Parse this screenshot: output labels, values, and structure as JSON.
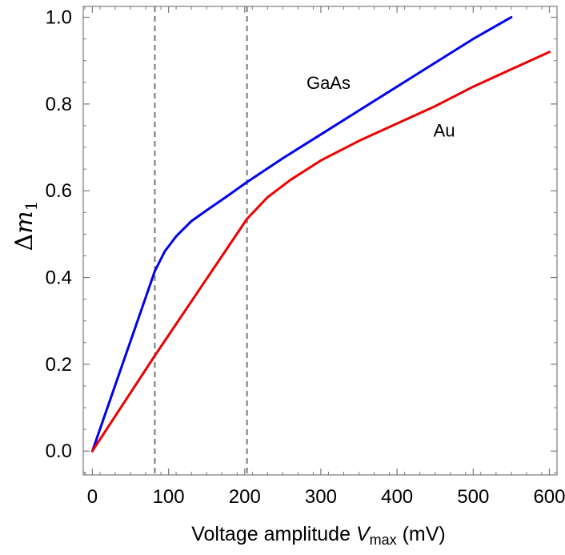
{
  "chart_data": {
    "type": "line",
    "xlabel": {
      "prefix": "Voltage  amplitude  ",
      "var": "V",
      "sub": "max",
      "unit": "  (mV)"
    },
    "ylabel": {
      "delta": "Δ",
      "var": "m",
      "sub": "1"
    },
    "xlim": [
      -12,
      610
    ],
    "ylim": [
      -0.055,
      1.025
    ],
    "xticks": [
      0,
      100,
      200,
      300,
      400,
      500,
      600
    ],
    "xtick_labels": [
      "0",
      "100",
      "200",
      "300",
      "400",
      "500",
      "600"
    ],
    "yticks": [
      0.0,
      0.2,
      0.4,
      0.6,
      0.8,
      1.0
    ],
    "ytick_labels": [
      "0.0",
      "0.2",
      "0.4",
      "0.6",
      "0.8",
      "1.0"
    ],
    "vlines": [
      82,
      203
    ],
    "grid": false,
    "series": [
      {
        "name": "GaAs",
        "color": "#0000ee",
        "x": [
          0,
          82,
          95,
          110,
          130,
          150,
          175,
          203,
          250,
          300,
          350,
          400,
          450,
          500,
          550
        ],
        "y": [
          0.0,
          0.415,
          0.46,
          0.495,
          0.53,
          0.555,
          0.585,
          0.62,
          0.675,
          0.73,
          0.785,
          0.84,
          0.895,
          0.95,
          1.0
        ]
      },
      {
        "name": "Au",
        "color": "#ee0000",
        "x": [
          0,
          82,
          203,
          230,
          260,
          300,
          350,
          400,
          450,
          500,
          550,
          600
        ],
        "y": [
          0.0,
          0.22,
          0.535,
          0.585,
          0.625,
          0.67,
          0.715,
          0.755,
          0.795,
          0.84,
          0.88,
          0.92
        ]
      }
    ],
    "annotations": [
      {
        "text": "GaAs",
        "x": 310,
        "y": 0.835
      },
      {
        "text": "Au",
        "x": 462,
        "y": 0.725
      }
    ]
  }
}
